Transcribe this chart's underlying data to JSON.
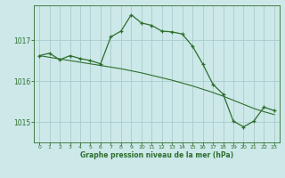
{
  "background_color": "#cce8e8",
  "plot_bg_color": "#cce8e8",
  "grid_color": "#aacccc",
  "line_color": "#2d6e2d",
  "xlabel": "Graphe pression niveau de la mer (hPa)",
  "xlim": [
    -0.5,
    23.5
  ],
  "ylim": [
    1014.5,
    1017.85
  ],
  "yticks": [
    1015,
    1016,
    1017
  ],
  "xticks": [
    0,
    1,
    2,
    3,
    4,
    5,
    6,
    7,
    8,
    9,
    10,
    11,
    12,
    13,
    14,
    15,
    16,
    17,
    18,
    19,
    20,
    21,
    22,
    23
  ],
  "series1_x": [
    0,
    1,
    2,
    3,
    4,
    5,
    6,
    7,
    8,
    9,
    10,
    11,
    12,
    13,
    14,
    15,
    16,
    17,
    18,
    19,
    20,
    21,
    22,
    23
  ],
  "series1_y": [
    1016.62,
    1016.68,
    1016.52,
    1016.62,
    1016.55,
    1016.5,
    1016.42,
    1017.08,
    1017.22,
    1017.62,
    1017.42,
    1017.36,
    1017.22,
    1017.2,
    1017.15,
    1016.85,
    1016.42,
    1015.92,
    1015.68,
    1015.02,
    1014.88,
    1015.02,
    1015.36,
    1015.28
  ],
  "series2_x": [
    0,
    1,
    2,
    3,
    4,
    5,
    6,
    7,
    8,
    9,
    10,
    11,
    12,
    13,
    14,
    15,
    16,
    17,
    18,
    19,
    20,
    21,
    22,
    23
  ],
  "series2_y": [
    1016.62,
    1016.58,
    1016.54,
    1016.5,
    1016.46,
    1016.42,
    1016.38,
    1016.34,
    1016.3,
    1016.25,
    1016.2,
    1016.14,
    1016.08,
    1016.02,
    1015.95,
    1015.88,
    1015.8,
    1015.72,
    1015.63,
    1015.53,
    1015.43,
    1015.33,
    1015.25,
    1015.18
  ]
}
